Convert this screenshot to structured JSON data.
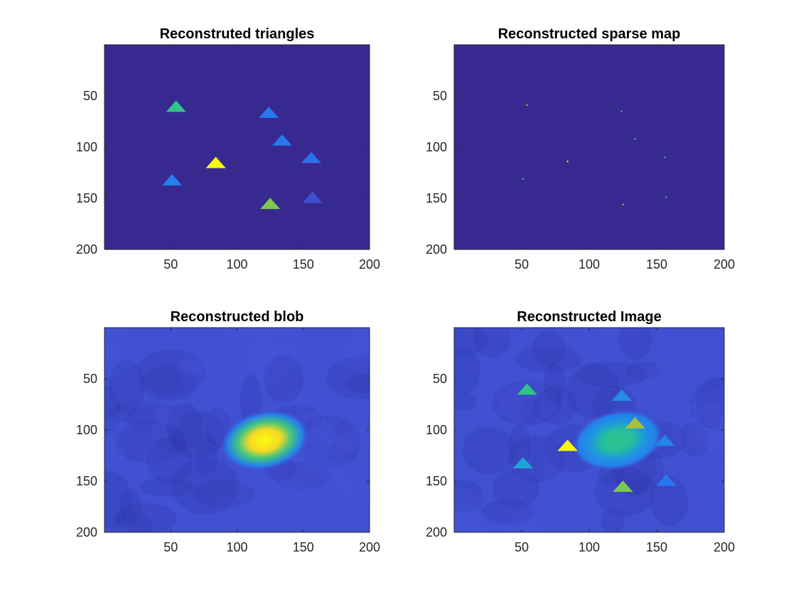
{
  "colors": {
    "background_dark": "#3D26A8",
    "colormap": "parula",
    "parula_stops": [
      "#352A87",
      "#3E26A8",
      "#3F50D1",
      "#2777F1",
      "#1BA4D6",
      "#1AB7B3",
      "#32C48B",
      "#7FC84F",
      "#D4BA2C",
      "#F8D12A",
      "#F9FB0E"
    ]
  },
  "chart_data": [
    {
      "type": "heatmap",
      "title": "Reconstruted triangles",
      "xlabel": "",
      "ylabel": "",
      "xlim": [
        0,
        200
      ],
      "ylim": [
        200,
        0
      ],
      "xticks": [
        50,
        100,
        150,
        200
      ],
      "yticks": [
        50,
        100,
        150,
        200
      ],
      "background_level": 0.03,
      "triangles": [
        {
          "x": 54,
          "y": 60,
          "level": 0.6
        },
        {
          "x": 124,
          "y": 66,
          "level": 0.3
        },
        {
          "x": 134,
          "y": 93,
          "level": 0.3
        },
        {
          "x": 156,
          "y": 110,
          "level": 0.28
        },
        {
          "x": 84,
          "y": 115,
          "level": 1.0
        },
        {
          "x": 51,
          "y": 132,
          "level": 0.32
        },
        {
          "x": 125,
          "y": 155,
          "level": 0.7
        },
        {
          "x": 157,
          "y": 149,
          "level": 0.2
        }
      ]
    },
    {
      "type": "heatmap",
      "title": "Reconstructed sparse map",
      "xlabel": "",
      "ylabel": "",
      "xlim": [
        0,
        200
      ],
      "ylim": [
        200,
        0
      ],
      "xticks": [
        50,
        100,
        150,
        200
      ],
      "yticks": [
        50,
        100,
        150,
        200
      ],
      "background_level": 0.03,
      "points": [
        {
          "x": 54,
          "y": 59,
          "level": 0.6
        },
        {
          "x": 124,
          "y": 65,
          "level": 0.3
        },
        {
          "x": 134,
          "y": 92,
          "level": 0.3
        },
        {
          "x": 156,
          "y": 110,
          "level": 0.25
        },
        {
          "x": 84,
          "y": 114,
          "level": 1.0
        },
        {
          "x": 51,
          "y": 131,
          "level": 0.3
        },
        {
          "x": 125,
          "y": 156,
          "level": 0.7
        },
        {
          "x": 157,
          "y": 149,
          "level": 0.2
        }
      ]
    },
    {
      "type": "heatmap",
      "title": "Reconstructed blob",
      "xlabel": "",
      "ylabel": "",
      "xlim": [
        0,
        200
      ],
      "ylim": [
        200,
        0
      ],
      "xticks": [
        50,
        100,
        150,
        200
      ],
      "yticks": [
        50,
        100,
        150,
        200
      ],
      "background_level": 0.2,
      "blob": {
        "x": 121,
        "y": 110,
        "level": 1.0
      }
    },
    {
      "type": "heatmap",
      "title": "Reconstructed Image",
      "xlabel": "",
      "ylabel": "",
      "xlim": [
        0,
        200
      ],
      "ylim": [
        200,
        0
      ],
      "xticks": [
        50,
        100,
        150,
        200
      ],
      "yticks": [
        50,
        100,
        150,
        200
      ],
      "background_level": 0.2,
      "blob": {
        "x": 121,
        "y": 110,
        "level": 0.6
      },
      "triangles": [
        {
          "x": 54,
          "y": 60,
          "level": 0.6
        },
        {
          "x": 124,
          "y": 66,
          "level": 0.35
        },
        {
          "x": 134,
          "y": 93,
          "level": 0.75
        },
        {
          "x": 156,
          "y": 110,
          "level": 0.33
        },
        {
          "x": 84,
          "y": 115,
          "level": 1.0
        },
        {
          "x": 51,
          "y": 132,
          "level": 0.4
        },
        {
          "x": 125,
          "y": 155,
          "level": 0.7
        },
        {
          "x": 157,
          "y": 149,
          "level": 0.3
        }
      ]
    }
  ]
}
